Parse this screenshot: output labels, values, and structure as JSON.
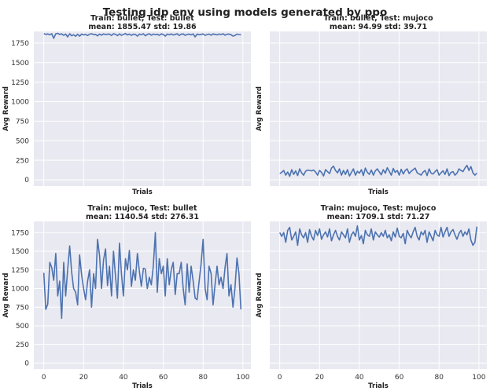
{
  "figure_title": "Testing idp env using models generated by ppo",
  "chart_data": [
    {
      "type": "line",
      "title": "Train: bullet, Test: bullet",
      "subtitle": "mean: 1855.47 std: 19.86",
      "xlabel": "Trials",
      "ylabel": "Avg Reward",
      "xlim": [
        0,
        99
      ],
      "ylim": [
        0,
        1900
      ],
      "yticks": [
        0,
        250,
        500,
        750,
        1000,
        1250,
        1500,
        1750
      ],
      "xticks": [],
      "series": [
        {
          "name": "reward",
          "values": [
            1873,
            1862,
            1868,
            1858,
            1870,
            1812,
            1870,
            1875,
            1862,
            1868,
            1850,
            1866,
            1830,
            1870,
            1845,
            1858,
            1838,
            1864,
            1840,
            1866,
            1855,
            1862,
            1848,
            1865,
            1870,
            1860,
            1862,
            1843,
            1866,
            1852,
            1868,
            1860,
            1864,
            1866,
            1848,
            1870,
            1864,
            1846,
            1868,
            1850,
            1862,
            1872,
            1855,
            1866,
            1850,
            1864,
            1862,
            1840,
            1866,
            1858,
            1870,
            1844,
            1862,
            1870,
            1852,
            1866,
            1860,
            1864,
            1850,
            1868,
            1862,
            1840,
            1866,
            1858,
            1868,
            1854,
            1862,
            1870,
            1848,
            1864,
            1868,
            1850,
            1862,
            1866,
            1856,
            1868,
            1830,
            1866,
            1858,
            1862,
            1868,
            1850,
            1860,
            1866,
            1852,
            1868,
            1862,
            1856,
            1866,
            1860,
            1870,
            1852,
            1864,
            1866,
            1858,
            1840,
            1848,
            1866,
            1860,
            1858
          ]
        }
      ]
    },
    {
      "type": "line",
      "title": "Train: bullet, Test: mujoco",
      "subtitle": "mean: 94.99 std: 39.71",
      "xlabel": "Trials",
      "ylabel": "Avg Reward",
      "xlim": [
        0,
        99
      ],
      "ylim": [
        0,
        1900
      ],
      "yticks": [],
      "xticks": [],
      "series": [
        {
          "name": "reward",
          "values": [
            80,
            95,
            120,
            60,
            100,
            45,
            130,
            70,
            115,
            55,
            140,
            90,
            60,
            110,
            125,
            120,
            115,
            125,
            100,
            60,
            120,
            95,
            50,
            130,
            105,
            80,
            150,
            175,
            120,
            90,
            140,
            60,
            120,
            70,
            130,
            50,
            95,
            140,
            60,
            110,
            85,
            130,
            55,
            150,
            95,
            70,
            125,
            60,
            115,
            140,
            100,
            65,
            130,
            85,
            155,
            110,
            60,
            145,
            95,
            120,
            60,
            135,
            75,
            120,
            140,
            80,
            110,
            130,
            150,
            90,
            75,
            60,
            100,
            120,
            55,
            140,
            85,
            75,
            105,
            130,
            60,
            90,
            115,
            70,
            140,
            55,
            95,
            105,
            60,
            85,
            140,
            120,
            105,
            150,
            185,
            120,
            170,
            90,
            60,
            85
          ]
        }
      ]
    },
    {
      "type": "line",
      "title": "Train: mujoco, Test: bullet",
      "subtitle": "mean: 1140.54 std: 276.31",
      "xlabel": "Trials",
      "ylabel": "Avg Reward",
      "xlim": [
        0,
        99
      ],
      "ylim": [
        0,
        1900
      ],
      "yticks": [
        0,
        250,
        500,
        750,
        1000,
        1250,
        1500,
        1750
      ],
      "xticks": [
        0,
        20,
        40,
        60,
        80,
        100
      ],
      "series": [
        {
          "name": "reward",
          "values": [
            1210,
            720,
            790,
            1350,
            1280,
            1110,
            1470,
            900,
            1100,
            600,
            1350,
            900,
            1250,
            1570,
            1220,
            1000,
            950,
            780,
            1450,
            1180,
            1000,
            850,
            1100,
            1250,
            750,
            1200,
            1000,
            1660,
            1440,
            1000,
            1380,
            1530,
            1040,
            1300,
            900,
            1500,
            1170,
            870,
            1610,
            1200,
            900,
            1400,
            1250,
            1510,
            1030,
            1250,
            1110,
            1470,
            1230,
            1030,
            1270,
            1260,
            1000,
            1150,
            1050,
            1300,
            1750,
            950,
            1400,
            1200,
            1300,
            900,
            1400,
            1050,
            1250,
            1350,
            920,
            1200,
            1200,
            1350,
            1000,
            780,
            1330,
            950,
            1300,
            1100,
            870,
            850,
            1100,
            1330,
            1660,
            1000,
            850,
            1300,
            1200,
            780,
            1050,
            1300,
            1050,
            1150,
            1000,
            1280,
            1470,
            900,
            1050,
            750,
            1000,
            1410,
            1200,
            720
          ]
        }
      ]
    },
    {
      "type": "line",
      "title": "Train: mujoco, Test: mujoco",
      "subtitle": "mean: 1709.1 std: 71.27",
      "xlabel": "Trials",
      "ylabel": "Avg Reward",
      "xlim": [
        0,
        99
      ],
      "ylim": [
        0,
        1900
      ],
      "yticks": [],
      "xticks": [
        0,
        20,
        40,
        60,
        80,
        100
      ],
      "series": [
        {
          "name": "reward",
          "values": [
            1750,
            1700,
            1750,
            1620,
            1780,
            1820,
            1650,
            1700,
            1760,
            1580,
            1800,
            1720,
            1680,
            1750,
            1620,
            1790,
            1700,
            1650,
            1780,
            1710,
            1800,
            1660,
            1720,
            1760,
            1690,
            1800,
            1640,
            1720,
            1780,
            1700,
            1650,
            1760,
            1720,
            1680,
            1800,
            1620,
            1720,
            1760,
            1700,
            1840,
            1650,
            1710,
            1600,
            1780,
            1720,
            1700,
            1800,
            1650,
            1760,
            1720,
            1690,
            1750,
            1700,
            1780,
            1680,
            1720,
            1640,
            1760,
            1690,
            1810,
            1700,
            1680,
            1740,
            1600,
            1780,
            1720,
            1680,
            1760,
            1820,
            1700,
            1650,
            1760,
            1720,
            1780,
            1620,
            1760,
            1700,
            1640,
            1780,
            1720,
            1700,
            1820,
            1690,
            1760,
            1820,
            1700,
            1760,
            1790,
            1720,
            1660,
            1740,
            1780,
            1700,
            1760,
            1720,
            1800,
            1650,
            1580,
            1620,
            1830
          ]
        }
      ]
    }
  ]
}
